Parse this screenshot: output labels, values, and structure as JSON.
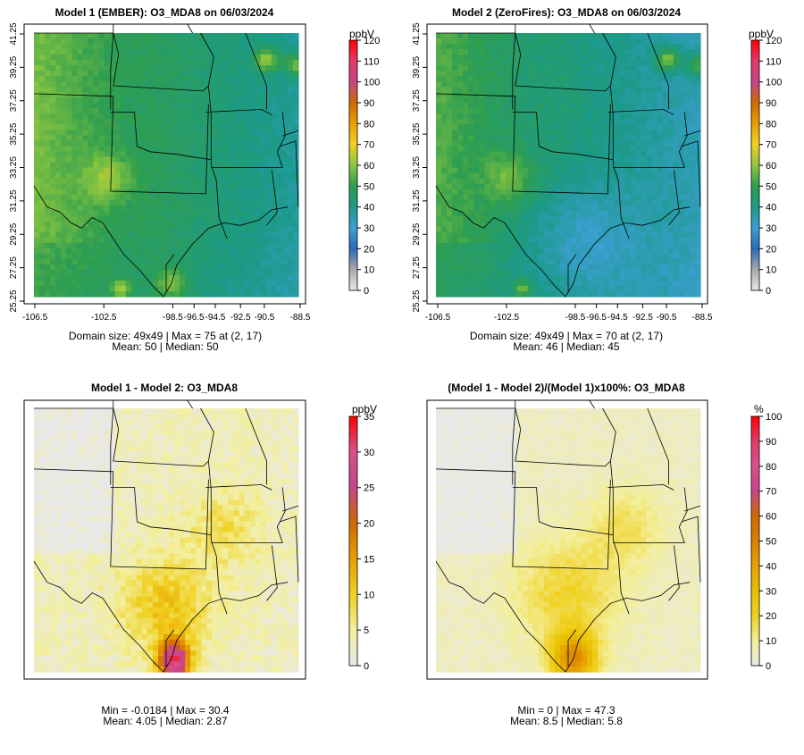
{
  "chart_data": [
    {
      "type": "heatmap",
      "title": "Model 1 (EMBER): O3_MDA8 on 06/03/2024",
      "unit": "ppbV",
      "xticks": [
        "-106.5",
        "-102.5",
        "-98.5",
        "-96.5",
        "-94.5",
        "-92.5",
        "-90.5",
        "-88.5"
      ],
      "yticks": [
        "25.25",
        "27.25",
        "29.25",
        "31.25",
        "33.25",
        "35.25",
        "37.25",
        "39.25",
        "41.25"
      ],
      "colorbar_ticks": [
        "0",
        "10",
        "20",
        "30",
        "40",
        "50",
        "60",
        "70",
        "80",
        "90",
        "100",
        "110",
        "120"
      ],
      "colorbar_range": [
        0,
        120
      ],
      "colors": [
        "#e8e8e8",
        "#a9a9a9",
        "#2a6bb8",
        "#3d9fd4",
        "#1b9a8a",
        "#2f9e4f",
        "#8cc63f",
        "#f0d020",
        "#e8a000",
        "#d06a00",
        "#c8448a",
        "#e43a6a",
        "#ff0000"
      ],
      "stats": [
        "Domain size: 49x49 | Max = 75 at (2, 17)",
        "Mean: 50 |  Median: 50"
      ],
      "mean": 50,
      "median": 50,
      "max": 75
    },
    {
      "type": "heatmap",
      "title": "Model 2 (ZeroFires): O3_MDA8 on 06/03/2024",
      "unit": "ppbV",
      "xticks": [
        "-106.5",
        "-102.5",
        "-98.5",
        "-96.5",
        "-94.5",
        "-92.5",
        "-90.5",
        "-88.5"
      ],
      "yticks": [
        "25.25",
        "27.25",
        "29.25",
        "31.25",
        "33.25",
        "35.25",
        "37.25",
        "39.25",
        "41.25"
      ],
      "colorbar_ticks": [
        "0",
        "10",
        "20",
        "30",
        "40",
        "50",
        "60",
        "70",
        "80",
        "90",
        "100",
        "110",
        "120"
      ],
      "colorbar_range": [
        0,
        120
      ],
      "colors": [
        "#e8e8e8",
        "#a9a9a9",
        "#2a6bb8",
        "#3d9fd4",
        "#1b9a8a",
        "#2f9e4f",
        "#8cc63f",
        "#f0d020",
        "#e8a000",
        "#d06a00",
        "#c8448a",
        "#e43a6a",
        "#ff0000"
      ],
      "stats": [
        "Domain size: 49x49 | Max = 70 at (2, 17)",
        "Mean: 46 |  Median: 45"
      ],
      "mean": 46,
      "median": 45,
      "max": 70
    },
    {
      "type": "heatmap",
      "title": "Model 1 - Model 2: O3_MDA8",
      "unit": "ppbV",
      "colorbar_ticks": [
        "0",
        "5",
        "10",
        "15",
        "20",
        "25",
        "30",
        "35"
      ],
      "colorbar_range": [
        0,
        35
      ],
      "colors": [
        "#e8e8e8",
        "#f3ef9c",
        "#f0d020",
        "#e8a000",
        "#d06a00",
        "#c8448a",
        "#d8508a",
        "#ff0000"
      ],
      "stats": [
        "Min = -0.0184 | Max = 30.4",
        "Mean: 4.05 |  Median: 2.87"
      ],
      "min": -0.0184,
      "max": 30.4,
      "mean": 4.05,
      "median": 2.87
    },
    {
      "type": "heatmap",
      "title": "(Model 1 - Model 2)/(Model 1)x100%: O3_MDA8",
      "unit": "%",
      "colorbar_ticks": [
        "0",
        "10",
        "20",
        "30",
        "40",
        "50",
        "60",
        "70",
        "80",
        "90",
        "100"
      ],
      "colorbar_range": [
        0,
        100
      ],
      "colors": [
        "#e8e8e8",
        "#f3ef9c",
        "#f0d020",
        "#e8c000",
        "#e8a000",
        "#d88000",
        "#d06a00",
        "#c8448a",
        "#d8508a",
        "#e43a6a",
        "#ff0000"
      ],
      "stats": [
        "Min = 0 | Max = 47.3",
        "Mean: 8.5 |  Median: 5.8"
      ],
      "min": 0,
      "max": 47.3,
      "mean": 8.5,
      "median": 5.8
    }
  ]
}
